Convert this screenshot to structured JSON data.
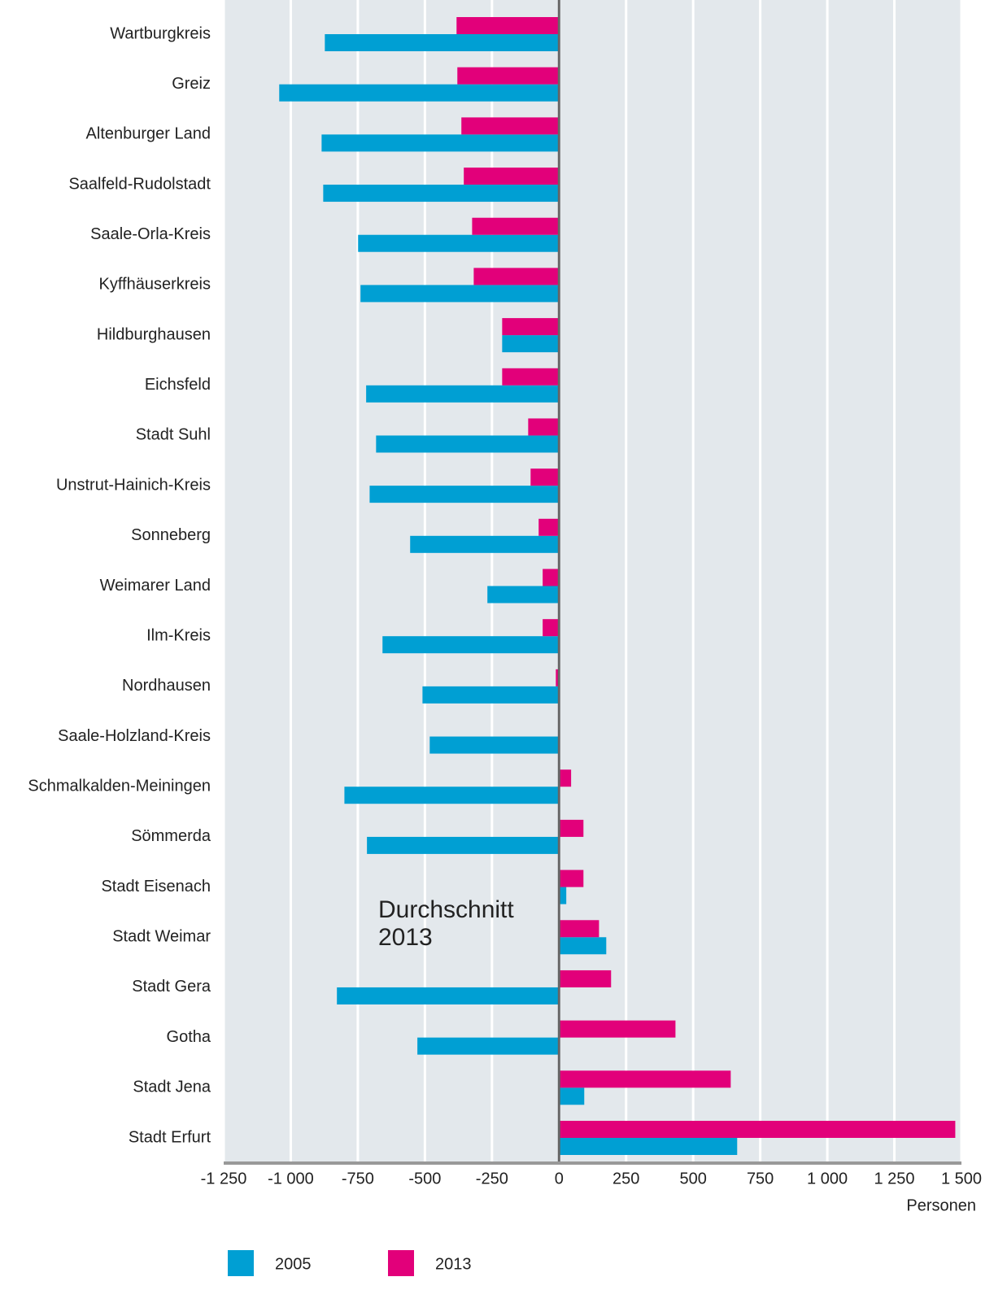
{
  "chart_data": {
    "type": "hbar",
    "categories": [
      "Wartburgkreis",
      "Greiz",
      "Altenburger Land",
      "Saalfeld-Rudolstadt",
      "Saale-Orla-Kreis",
      "Kyffhäuserkreis",
      "Hildburghausen",
      "Eichsfeld",
      "Stadt Suhl",
      "Unstrut-Hainich-Kreis",
      "Sonneberg",
      "Weimarer Land",
      "Ilm-Kreis",
      "Nordhausen",
      "Saale-Holzland-Kreis",
      "Schmalkalden-Meiningen",
      "Sömmerda",
      "Stadt Eisenach",
      "Stadt Weimar",
      "Stadt Gera",
      "Gotha",
      "Stadt Jena",
      "Stadt Erfurt"
    ],
    "series": [
      {
        "name": "2005",
        "color": "#009fd3",
        "values": [
          -873,
          -1043,
          -885,
          -879,
          -749,
          -740,
          -212,
          -719,
          -682,
          -706,
          -555,
          -267,
          -658,
          -509,
          -482,
          -800,
          -716,
          27,
          176,
          -828,
          -528,
          94,
          664
        ]
      },
      {
        "name": "2013",
        "color": "#e2007a",
        "values": [
          -382,
          -379,
          -364,
          -355,
          -324,
          -318,
          -212,
          -212,
          -115,
          -106,
          -76,
          -61,
          -61,
          -12,
          -2,
          45,
          91,
          91,
          149,
          194,
          434,
          640,
          1477
        ]
      }
    ],
    "xlim": [
      -1250,
      1500
    ],
    "xticks": [
      {
        "value": -1250,
        "label": "-1 250"
      },
      {
        "value": -1000,
        "label": "-1 000"
      },
      -750,
      -500,
      -250,
      0,
      250,
      500,
      750,
      {
        "value": 1000,
        "label": "1 000"
      },
      {
        "value": 1250,
        "label": "1 250"
      },
      {
        "value": 1500,
        "label": "1 500"
      }
    ],
    "xlabel": "Personen",
    "annotation": [
      "Durchschnitt",
      "2013"
    ],
    "grid": true,
    "legend": "bottom"
  }
}
